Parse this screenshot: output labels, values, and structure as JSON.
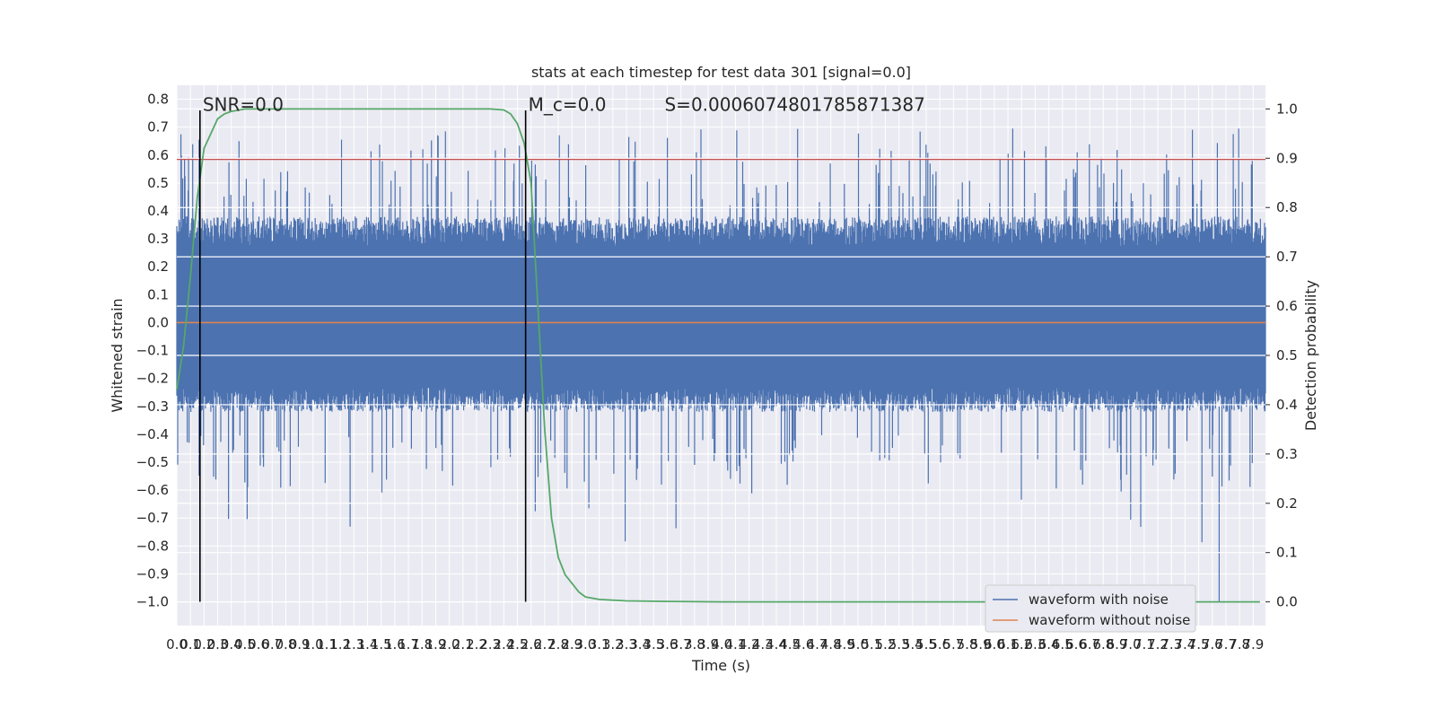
{
  "chart_data": {
    "type": "line",
    "title": "stats at each timestep for test data 301 [signal=0.0]",
    "xlabel": "Time (s)",
    "ylabel": "Whitened strain",
    "y2label": "Detection probability",
    "xlim": [
      0.0,
      7.99
    ],
    "ylim": [
      -1.085,
      0.85
    ],
    "y2lim": [
      -0.048,
      1.048
    ],
    "x_tick_step": 0.1,
    "x_tick_count": 80,
    "y_ticks": [
      0.8,
      0.7,
      0.6,
      0.5,
      0.4,
      0.3,
      0.2,
      0.1,
      0.0,
      -0.1,
      -0.2,
      -0.3,
      -0.4,
      -0.5,
      -0.6,
      -0.7,
      -0.8,
      -0.9,
      -1.0
    ],
    "y2_ticks": [
      1.0,
      0.9,
      0.8,
      0.7,
      0.6,
      0.5,
      0.4,
      0.3,
      0.2,
      0.1,
      0.0
    ],
    "grid": true,
    "legend_position": "bottom-right",
    "series": [
      {
        "name": "waveform with noise",
        "color": "#4c72b0",
        "kind": "noise",
        "typical_max": 0.38,
        "typical_min": -0.32,
        "peak_max": 0.72,
        "peak_min": -1.0
      },
      {
        "name": "waveform without noise",
        "color": "#dd8452",
        "kind": "flat",
        "value": 0.0
      },
      {
        "name": "",
        "axis": "y2",
        "color": "#55a868",
        "kind": "line",
        "x": [
          0.0,
          0.05,
          0.1,
          0.15,
          0.2,
          0.25,
          0.3,
          0.35,
          0.4,
          0.5,
          0.6,
          0.8,
          1.0,
          1.5,
          2.0,
          2.3,
          2.4,
          2.45,
          2.5,
          2.55,
          2.6,
          2.65,
          2.7,
          2.75,
          2.8,
          2.85,
          2.95,
          3.0,
          3.1,
          3.3,
          3.6,
          4.0,
          5.0,
          6.0,
          7.0,
          7.95
        ],
        "y": [
          0.43,
          0.52,
          0.66,
          0.82,
          0.92,
          0.95,
          0.98,
          0.99,
          0.995,
          1.0,
          1.0,
          1.0,
          1.0,
          1.0,
          1.0,
          1.0,
          0.998,
          0.99,
          0.97,
          0.93,
          0.85,
          0.6,
          0.35,
          0.17,
          0.09,
          0.055,
          0.02,
          0.01,
          0.005,
          0.002,
          0.001,
          0.0,
          0.0,
          0.0,
          0.0,
          0.0
        ]
      }
    ],
    "hlines": [
      {
        "axis": "y",
        "value": 0.585,
        "color": "#c44e52"
      }
    ],
    "vlines": [
      {
        "x": 0.17,
        "y_from": -1.0,
        "y_to": 0.76,
        "color": "#000000"
      },
      {
        "x": 2.56,
        "y_from": -1.0,
        "y_to": 0.76,
        "color": "#000000"
      }
    ],
    "annotations": [
      {
        "text": "SNR=0.0",
        "x": 0.19,
        "y": 0.79
      },
      {
        "text": "M_c=0.0",
        "x": 2.58,
        "y": 0.79
      },
      {
        "text": "S=0.0006074801785871387",
        "x": 3.58,
        "y": 0.79
      }
    ]
  }
}
